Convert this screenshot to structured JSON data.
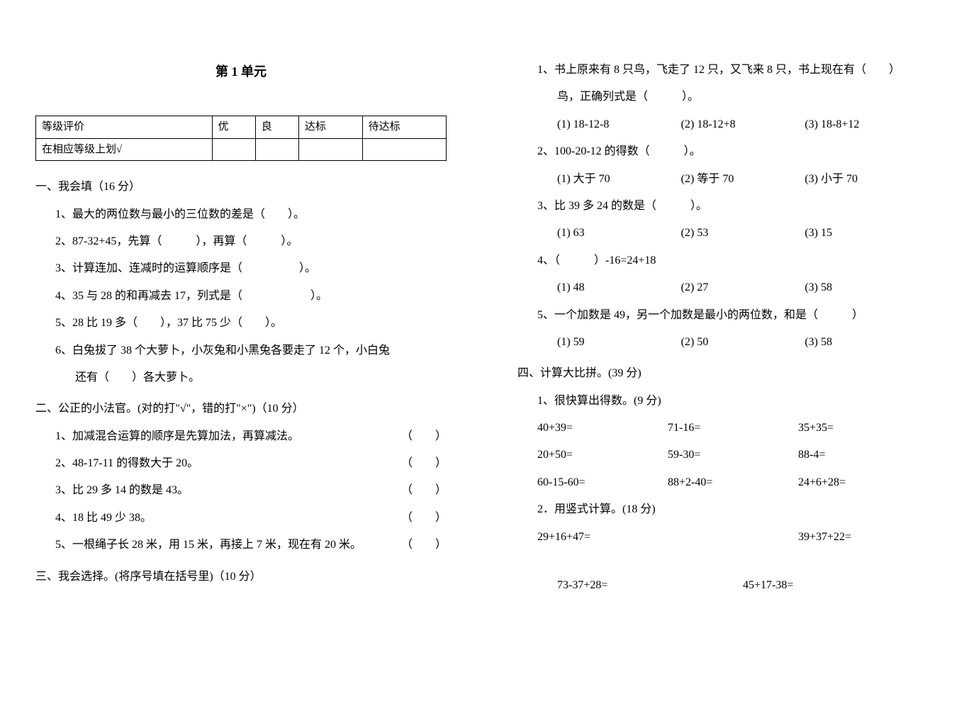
{
  "title": "第 1 单元",
  "gradeTable": {
    "headers": [
      "等级评价",
      "优",
      "良",
      "达标",
      "待达标"
    ],
    "rowLabel": "在相应等级上划√"
  },
  "sec1": {
    "heading": "一、我会填（16 分）",
    "q1": "1、最大的两位数与最小的三位数的差是（　　）。",
    "q2": "2、87-32+45，先算（　　　），再算（　　　）。",
    "q3": "3、计算连加、连减时的运算顺序是（　　　　　）。",
    "q4": "4、35 与 28 的和再减去 17，列式是（　　　　　　）。",
    "q5": "5、28 比 19 多（　　），37 比 75 少（　　）。",
    "q6a": "6、白兔拔了 38 个大萝卜，小灰兔和小黑兔各要走了 12 个，小白兔",
    "q6b": "还有（　　）各大萝卜。"
  },
  "sec2": {
    "heading": "二、公正的小法官。(对的打\"√\"，错的打\"×\")（10 分）",
    "q1": "1、加减混合运算的顺序是先算加法，再算减法。",
    "q2": "2、48-17-11 的得数大于 20。",
    "q3": "3、比 29 多 14 的数是 43。",
    "q4": "4、18 比 49 少 38。",
    "q5": "5、一根绳子长 28 米，用 15 米，再接上 7 米，现在有 20 米。",
    "blank": "（　　）"
  },
  "sec3": {
    "heading": "三、我会选择。(将序号填在括号里)（10 分）",
    "q1a": "1、书上原来有 8 只鸟，飞走了 12 只，又飞来 8 只，书上现在有（　　）",
    "q1b": "鸟，正确列式是（　　　）。",
    "q1o1": "(1) 18-12-8",
    "q1o2": "(2) 18-12+8",
    "q1o3": "(3) 18-8+12",
    "q2": "2、100-20-12 的得数（　　　）。",
    "q2o1": "(1) 大于 70",
    "q2o2": "(2) 等于 70",
    "q2o3": "(3) 小于 70",
    "q3": "3、比 39 多 24 的数是（　　　）。",
    "q3o1": "(1) 63",
    "q3o2": "(2) 53",
    "q3o3": "(3) 15",
    "q4": "4、（　　　）-16=24+18",
    "q4o1": "(1) 48",
    "q4o2": "(2) 27",
    "q4o3": "(3) 58",
    "q5": "5、一个加数是 49，另一个加数是最小的两位数，和是（　　　）",
    "q5o1": "(1) 59",
    "q5o2": "(2) 50",
    "q5o3": "(3) 58"
  },
  "sec4": {
    "heading": "四、计算大比拼。(39 分)",
    "sub1": "1、很快算出得数。(9 分)",
    "r1c1": "40+39=",
    "r1c2": "71-16=",
    "r1c3": "35+35=",
    "r2c1": "20+50=",
    "r2c2": "59-30=",
    "r2c3": "88-4=",
    "r3c1": "60-15-60=",
    "r3c2": "88+2-40=",
    "r3c3": "24+6+28=",
    "sub2": "2．用竖式计算。(18 分)",
    "v1": "29+16+47=",
    "v2": "39+37+22=",
    "v3": "73-37+28=",
    "v4": "45+17-38="
  }
}
